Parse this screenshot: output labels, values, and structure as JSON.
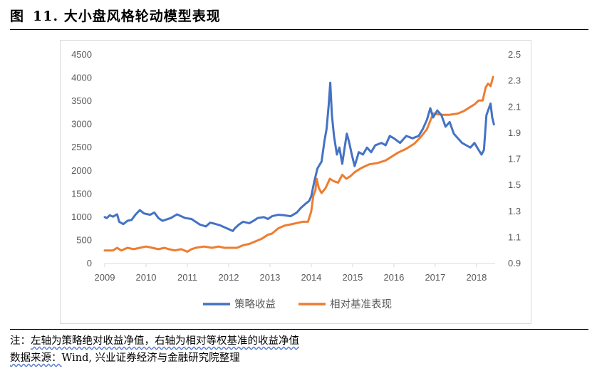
{
  "figure": {
    "label": "图",
    "number": "11.",
    "title": "大小盘风格轮动模型表现"
  },
  "notes": {
    "note_label": "注：",
    "note_text": "左轴为策略绝对收益净值，右轴为相对等权基准的收益净值",
    "source_label": "数据来源：",
    "source_text": "Wind, 兴业证券经济与金融研究院整理"
  },
  "colors": {
    "strategy": "#4472c4",
    "relative": "#ed7d31",
    "tick_text": "#595959",
    "axis": "#d9d9d9"
  },
  "chart_data": {
    "type": "line",
    "title": "",
    "x_ticks": [
      "2009",
      "2010",
      "2011",
      "2012",
      "2013",
      "2014",
      "2015",
      "2016",
      "2017",
      "2018"
    ],
    "xlim": [
      2009,
      2018.45
    ],
    "y_left": {
      "ylim": [
        0,
        4500
      ],
      "ticks": [
        "0",
        "500",
        "1000",
        "1500",
        "2000",
        "2500",
        "3000",
        "3500",
        "4000",
        "4500"
      ]
    },
    "y_right": {
      "ylim": [
        0.9,
        2.5
      ],
      "ticks": [
        "0.9",
        "1.1",
        "1.3",
        "1.5",
        "1.7",
        "1.9",
        "2.1",
        "2.3",
        "2.5"
      ]
    },
    "legend_position": "bottom",
    "series": [
      {
        "name": "策略收益",
        "axis": "left",
        "points": [
          [
            2009.0,
            1000
          ],
          [
            2009.05,
            980
          ],
          [
            2009.12,
            1040
          ],
          [
            2009.2,
            1010
          ],
          [
            2009.3,
            1060
          ],
          [
            2009.35,
            900
          ],
          [
            2009.45,
            850
          ],
          [
            2009.55,
            920
          ],
          [
            2009.65,
            940
          ],
          [
            2009.75,
            1060
          ],
          [
            2009.85,
            1150
          ],
          [
            2009.95,
            1080
          ],
          [
            2010.1,
            1050
          ],
          [
            2010.2,
            1100
          ],
          [
            2010.3,
            980
          ],
          [
            2010.4,
            920
          ],
          [
            2010.5,
            950
          ],
          [
            2010.6,
            980
          ],
          [
            2010.75,
            1060
          ],
          [
            2010.85,
            1020
          ],
          [
            2010.95,
            980
          ],
          [
            2011.1,
            960
          ],
          [
            2011.2,
            900
          ],
          [
            2011.3,
            840
          ],
          [
            2011.45,
            800
          ],
          [
            2011.55,
            880
          ],
          [
            2011.65,
            860
          ],
          [
            2011.8,
            820
          ],
          [
            2011.9,
            780
          ],
          [
            2012.0,
            740
          ],
          [
            2012.1,
            700
          ],
          [
            2012.15,
            760
          ],
          [
            2012.25,
            840
          ],
          [
            2012.35,
            900
          ],
          [
            2012.5,
            870
          ],
          [
            2012.6,
            920
          ],
          [
            2012.7,
            980
          ],
          [
            2012.85,
            1000
          ],
          [
            2012.95,
            960
          ],
          [
            2013.05,
            1020
          ],
          [
            2013.2,
            1050
          ],
          [
            2013.35,
            1040
          ],
          [
            2013.5,
            1020
          ],
          [
            2013.65,
            1100
          ],
          [
            2013.75,
            1200
          ],
          [
            2013.85,
            1280
          ],
          [
            2013.95,
            1350
          ],
          [
            2014.0,
            1450
          ],
          [
            2014.08,
            1800
          ],
          [
            2014.15,
            2050
          ],
          [
            2014.25,
            2200
          ],
          [
            2014.32,
            2650
          ],
          [
            2014.37,
            2900
          ],
          [
            2014.42,
            3400
          ],
          [
            2014.46,
            3900
          ],
          [
            2014.5,
            3200
          ],
          [
            2014.55,
            2750
          ],
          [
            2014.62,
            2350
          ],
          [
            2014.68,
            2500
          ],
          [
            2014.75,
            2150
          ],
          [
            2014.8,
            2450
          ],
          [
            2014.86,
            2800
          ],
          [
            2014.92,
            2600
          ],
          [
            2014.98,
            2350
          ],
          [
            2015.05,
            2100
          ],
          [
            2015.15,
            2400
          ],
          [
            2015.25,
            2350
          ],
          [
            2015.35,
            2500
          ],
          [
            2015.45,
            2400
          ],
          [
            2015.55,
            2550
          ],
          [
            2015.7,
            2600
          ],
          [
            2015.8,
            2550
          ],
          [
            2015.9,
            2750
          ],
          [
            2016.0,
            2700
          ],
          [
            2016.15,
            2600
          ],
          [
            2016.3,
            2750
          ],
          [
            2016.45,
            2700
          ],
          [
            2016.6,
            2750
          ],
          [
            2016.7,
            2900
          ],
          [
            2016.8,
            3100
          ],
          [
            2016.88,
            3350
          ],
          [
            2016.95,
            3150
          ],
          [
            2017.05,
            3300
          ],
          [
            2017.15,
            3200
          ],
          [
            2017.25,
            2950
          ],
          [
            2017.35,
            3050
          ],
          [
            2017.45,
            2800
          ],
          [
            2017.55,
            2700
          ],
          [
            2017.65,
            2600
          ],
          [
            2017.75,
            2550
          ],
          [
            2017.85,
            2500
          ],
          [
            2017.95,
            2600
          ],
          [
            2018.05,
            2450
          ],
          [
            2018.12,
            2350
          ],
          [
            2018.18,
            2450
          ],
          [
            2018.24,
            3200
          ],
          [
            2018.3,
            3350
          ],
          [
            2018.34,
            3450
          ],
          [
            2018.38,
            3150
          ],
          [
            2018.42,
            3000
          ]
        ]
      },
      {
        "name": "相对基准表现",
        "axis": "right",
        "points": [
          [
            2009.0,
            1.0
          ],
          [
            2009.2,
            1.0
          ],
          [
            2009.3,
            1.02
          ],
          [
            2009.4,
            1.0
          ],
          [
            2009.55,
            1.02
          ],
          [
            2009.7,
            1.01
          ],
          [
            2009.85,
            1.02
          ],
          [
            2010.0,
            1.03
          ],
          [
            2010.15,
            1.02
          ],
          [
            2010.3,
            1.01
          ],
          [
            2010.45,
            1.02
          ],
          [
            2010.55,
            1.01
          ],
          [
            2010.7,
            1.0
          ],
          [
            2010.85,
            1.01
          ],
          [
            2011.0,
            0.99
          ],
          [
            2011.1,
            1.01
          ],
          [
            2011.2,
            1.02
          ],
          [
            2011.4,
            1.03
          ],
          [
            2011.6,
            1.02
          ],
          [
            2011.75,
            1.03
          ],
          [
            2011.9,
            1.02
          ],
          [
            2012.0,
            1.02
          ],
          [
            2012.2,
            1.02
          ],
          [
            2012.35,
            1.04
          ],
          [
            2012.5,
            1.05
          ],
          [
            2012.65,
            1.07
          ],
          [
            2012.8,
            1.09
          ],
          [
            2012.95,
            1.12
          ],
          [
            2013.05,
            1.13
          ],
          [
            2013.2,
            1.17
          ],
          [
            2013.35,
            1.19
          ],
          [
            2013.5,
            1.2
          ],
          [
            2013.65,
            1.21
          ],
          [
            2013.8,
            1.22
          ],
          [
            2013.92,
            1.22
          ],
          [
            2014.0,
            1.3
          ],
          [
            2014.05,
            1.42
          ],
          [
            2014.1,
            1.46
          ],
          [
            2014.13,
            1.55
          ],
          [
            2014.18,
            1.48
          ],
          [
            2014.25,
            1.44
          ],
          [
            2014.35,
            1.48
          ],
          [
            2014.45,
            1.55
          ],
          [
            2014.55,
            1.53
          ],
          [
            2014.65,
            1.52
          ],
          [
            2014.75,
            1.58
          ],
          [
            2014.85,
            1.55
          ],
          [
            2014.95,
            1.57
          ],
          [
            2015.05,
            1.6
          ],
          [
            2015.2,
            1.63
          ],
          [
            2015.4,
            1.66
          ],
          [
            2015.6,
            1.67
          ],
          [
            2015.8,
            1.69
          ],
          [
            2015.95,
            1.72
          ],
          [
            2016.1,
            1.75
          ],
          [
            2016.3,
            1.78
          ],
          [
            2016.5,
            1.82
          ],
          [
            2016.65,
            1.87
          ],
          [
            2016.8,
            1.93
          ],
          [
            2016.95,
            2.05
          ],
          [
            2017.15,
            2.04
          ],
          [
            2017.35,
            2.04
          ],
          [
            2017.55,
            2.05
          ],
          [
            2017.7,
            2.07
          ],
          [
            2017.85,
            2.1
          ],
          [
            2017.95,
            2.12
          ],
          [
            2018.05,
            2.15
          ],
          [
            2018.15,
            2.15
          ],
          [
            2018.22,
            2.25
          ],
          [
            2018.28,
            2.28
          ],
          [
            2018.34,
            2.26
          ],
          [
            2018.4,
            2.33
          ]
        ]
      }
    ]
  }
}
